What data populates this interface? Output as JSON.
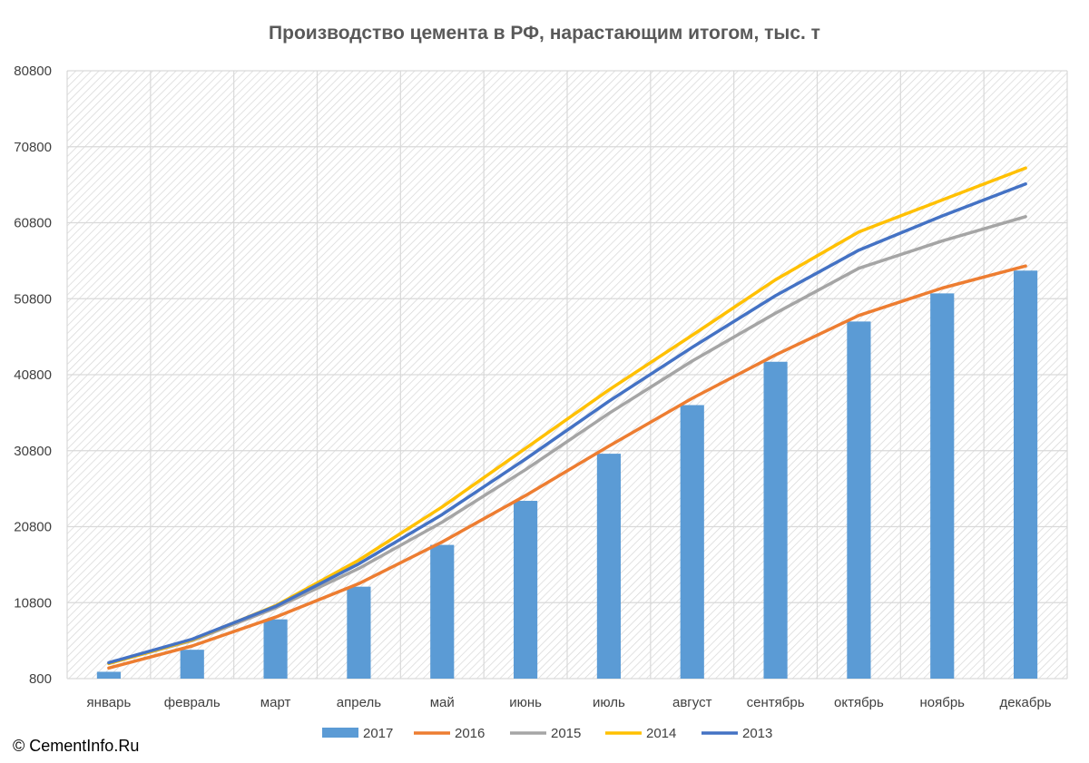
{
  "copyright": "© CementInfo.Ru",
  "chart_data": {
    "type": "bar",
    "title": "Производство цемента в РФ, нарастающим итогом, тыс. т",
    "xlabel": "",
    "ylabel": "",
    "ylim": [
      800,
      80800
    ],
    "yticks": [
      800,
      10800,
      20800,
      30800,
      40800,
      50800,
      60800,
      70800,
      80800
    ],
    "categories": [
      "январь",
      "февраль",
      "март",
      "апрель",
      "май",
      "июнь",
      "июль",
      "август",
      "сентябрь",
      "октябрь",
      "ноябрь",
      "декабрь"
    ],
    "grid": true,
    "legend": "bottom",
    "series": [
      {
        "name": "2017",
        "kind": "bar",
        "color": "#5B9BD5",
        "values": [
          1700,
          4600,
          8600,
          12900,
          18400,
          24200,
          30400,
          36800,
          42500,
          47800,
          51500,
          54500
        ]
      },
      {
        "name": "2016",
        "kind": "line",
        "color": "#ED7D31",
        "values": [
          2200,
          5100,
          8900,
          13300,
          18800,
          24900,
          31400,
          37700,
          43400,
          48600,
          52200,
          55100
        ]
      },
      {
        "name": "2015",
        "kind": "line",
        "color": "#A5A5A5",
        "values": [
          2800,
          5800,
          10100,
          15300,
          21400,
          28300,
          35700,
          42600,
          48900,
          54800,
          58400,
          61600
        ]
      },
      {
        "name": "2014",
        "kind": "line",
        "color": "#FFC000",
        "values": [
          2800,
          5900,
          10400,
          16400,
          23400,
          31100,
          38800,
          46000,
          53300,
          59600,
          63800,
          68000
        ]
      },
      {
        "name": "2013",
        "kind": "line",
        "color": "#4472C4",
        "values": [
          2900,
          6000,
          10300,
          15900,
          22400,
          29700,
          37300,
          44400,
          51200,
          57200,
          61700,
          65900
        ]
      }
    ]
  }
}
